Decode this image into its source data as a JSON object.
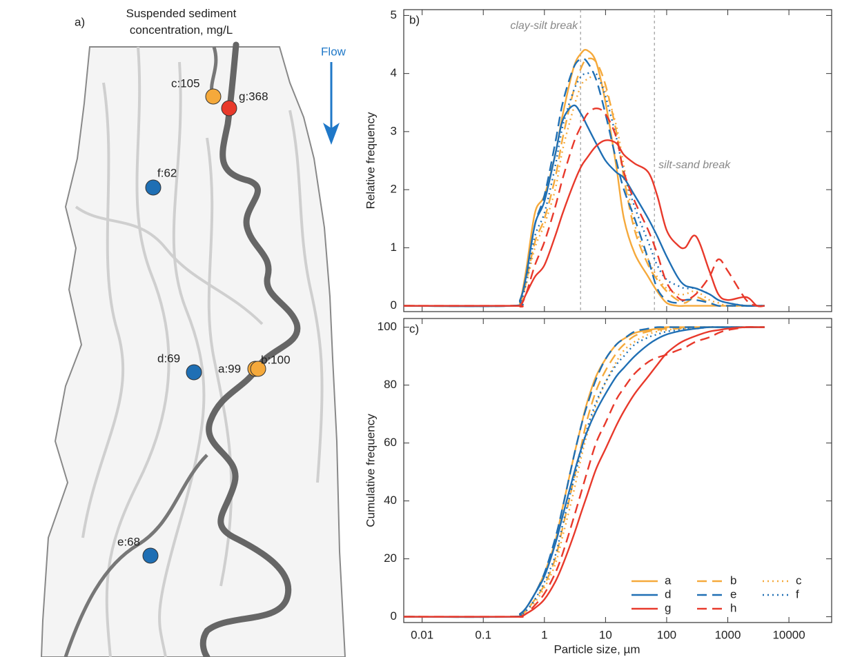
{
  "map": {
    "panel_label": "a)",
    "title": "Suspended sediment concentration, mg/L",
    "flow_label": "Flow",
    "sites": [
      {
        "label": "c:105",
        "color": "#f5a93b"
      },
      {
        "label": "g:368",
        "color": "#e8392b"
      },
      {
        "label": "f:62",
        "color": "#1f6fb4"
      },
      {
        "label": "d:69",
        "color": "#1f6fb4"
      },
      {
        "label": "a:99",
        "color": "#f5a93b"
      },
      {
        "label": "b:100",
        "color": "#f5a93b"
      },
      {
        "label": "e:68",
        "color": "#1f6fb4"
      }
    ]
  },
  "chart_data": [
    {
      "type": "line",
      "panel_label": "b)",
      "y_label": "Relative frequency",
      "log_x": true,
      "x": [
        0.005,
        0.3,
        0.4,
        0.5,
        0.7,
        1,
        1.5,
        2,
        3,
        4,
        5,
        7,
        10,
        15,
        20,
        30,
        50,
        70,
        100,
        150,
        200,
        300,
        500,
        700,
        1000,
        2000,
        3000,
        4000
      ],
      "xlim": [
        0.005,
        50000
      ],
      "xticks": [
        0.01,
        0.1,
        1,
        10,
        100,
        1000,
        10000
      ],
      "ylim": [
        -0.1,
        5.1
      ],
      "yticks": [
        0,
        1,
        2,
        3,
        4,
        5
      ],
      "annotations": [
        {
          "text": "clay-silt break",
          "x": 3.9
        },
        {
          "text": "silt-sand break",
          "x": 63
        }
      ],
      "series": [
        {
          "name": "a",
          "color": "#f5a93b",
          "dash": "solid",
          "values": [
            0,
            0,
            0.1,
            0.6,
            1.6,
            1.9,
            2.6,
            3.3,
            4.1,
            4.35,
            4.4,
            4.2,
            3.5,
            2.4,
            1.5,
            0.9,
            0.5,
            0.25,
            0.05,
            0,
            0,
            0,
            0,
            0,
            0,
            0,
            0,
            0
          ]
        },
        {
          "name": "b",
          "color": "#f5a93b",
          "dash": "dashed",
          "values": [
            0,
            0,
            0.05,
            0.4,
            1.1,
            1.5,
            2.2,
            2.9,
            3.7,
            4.1,
            4.25,
            4.2,
            3.8,
            3.0,
            2.2,
            1.3,
            0.7,
            0.45,
            0.25,
            0.1,
            0.05,
            0.15,
            0.05,
            0,
            0,
            0,
            0,
            0
          ]
        },
        {
          "name": "c",
          "color": "#f5a93b",
          "dash": "dotted",
          "values": [
            0,
            0,
            0.05,
            0.35,
            1.0,
            1.4,
            2.0,
            2.7,
            3.4,
            3.8,
            3.9,
            3.95,
            3.7,
            3.1,
            2.4,
            1.4,
            0.8,
            0.5,
            0.3,
            0.2,
            0.2,
            0.25,
            0.1,
            0.05,
            0,
            0,
            0,
            0
          ]
        },
        {
          "name": "d",
          "color": "#1f6fb4",
          "dash": "solid",
          "values": [
            0,
            0,
            0.1,
            0.5,
            1.4,
            1.8,
            2.6,
            3.2,
            3.45,
            3.3,
            3.1,
            2.8,
            2.5,
            2.3,
            2.2,
            1.9,
            1.5,
            1.2,
            0.85,
            0.5,
            0.35,
            0.3,
            0.2,
            0.1,
            0.05,
            0,
            0,
            0
          ]
        },
        {
          "name": "e",
          "color": "#1f6fb4",
          "dash": "dashed",
          "values": [
            0,
            0,
            0.1,
            0.5,
            1.4,
            1.9,
            2.8,
            3.5,
            4.1,
            4.25,
            4.2,
            3.9,
            3.3,
            2.5,
            2.0,
            1.5,
            0.8,
            0.3,
            0.1,
            0.05,
            0.1,
            0.1,
            0.05,
            0,
            0,
            0,
            0,
            0
          ]
        },
        {
          "name": "f",
          "color": "#1f6fb4",
          "dash": "dotted",
          "values": [
            0,
            0,
            0.05,
            0.4,
            1.2,
            1.6,
            2.4,
            3.1,
            3.7,
            3.95,
            4.0,
            4.0,
            3.6,
            2.9,
            2.3,
            1.7,
            1.1,
            0.7,
            0.45,
            0.35,
            0.3,
            0.3,
            0.2,
            0.1,
            0.05,
            0,
            0,
            0
          ]
        },
        {
          "name": "g",
          "color": "#e8392b",
          "dash": "solid",
          "values": [
            0,
            0,
            0,
            0.2,
            0.5,
            0.7,
            1.2,
            1.6,
            2.1,
            2.4,
            2.55,
            2.75,
            2.85,
            2.8,
            2.6,
            2.45,
            2.3,
            1.9,
            1.3,
            1.05,
            1.0,
            1.2,
            0.6,
            0.2,
            0.1,
            0.15,
            0,
            0
          ]
        },
        {
          "name": "h",
          "color": "#e8392b",
          "dash": "dashed",
          "values": [
            0,
            0,
            0,
            0.2,
            0.7,
            1.1,
            1.7,
            2.2,
            2.8,
            3.1,
            3.3,
            3.4,
            3.3,
            2.9,
            2.3,
            1.8,
            1.3,
            0.9,
            0.4,
            0.15,
            0.1,
            0.2,
            0.5,
            0.8,
            0.6,
            0.1,
            0,
            0
          ]
        }
      ]
    },
    {
      "type": "line",
      "panel_label": "c)",
      "y_label": "Cumulative frequency",
      "x_label": "Particle size, µm",
      "log_x": true,
      "legend": "lower right",
      "x": [
        0.005,
        0.3,
        0.4,
        0.5,
        0.7,
        1,
        1.5,
        2,
        3,
        4,
        5,
        7,
        10,
        15,
        20,
        30,
        50,
        70,
        100,
        150,
        200,
        300,
        500,
        700,
        1000,
        2000,
        3000,
        4000
      ],
      "xlim": [
        0.005,
        50000
      ],
      "xticks": [
        0.01,
        0.1,
        1,
        10,
        100,
        1000,
        10000
      ],
      "ylim": [
        -2,
        103
      ],
      "yticks": [
        0,
        20,
        40,
        60,
        80,
        100
      ],
      "series": [
        {
          "name": "a",
          "color": "#f5a93b",
          "dash": "solid",
          "values": [
            0,
            0,
            1,
            3,
            8,
            15,
            26,
            38,
            55,
            66,
            74,
            83,
            89,
            94,
            96,
            98,
            99,
            99.5,
            100,
            100,
            100,
            100,
            100,
            100,
            100,
            100,
            100,
            100
          ]
        },
        {
          "name": "b",
          "color": "#f5a93b",
          "dash": "dashed",
          "values": [
            0,
            0,
            0.5,
            2,
            6,
            11,
            20,
            31,
            47,
            59,
            68,
            78,
            85,
            91,
            94,
            97,
            98.5,
            99,
            99.5,
            99.5,
            100,
            100,
            100,
            100,
            100,
            100,
            100,
            100
          ]
        },
        {
          "name": "c",
          "color": "#f5a93b",
          "dash": "dotted",
          "values": [
            0,
            0,
            0.5,
            2,
            5,
            10,
            18,
            28,
            43,
            55,
            63,
            73,
            81,
            88,
            92,
            95,
            97.5,
            98.5,
            99,
            99.5,
            99.5,
            100,
            100,
            100,
            100,
            100,
            100,
            100
          ]
        },
        {
          "name": "d",
          "color": "#1f6fb4",
          "dash": "solid",
          "values": [
            0,
            0,
            1,
            3,
            8,
            14,
            25,
            35,
            49,
            58,
            64,
            71,
            77,
            83,
            86,
            90,
            94,
            96,
            97.5,
            98.5,
            99,
            99.5,
            100,
            100,
            100,
            100,
            100,
            100
          ]
        },
        {
          "name": "e",
          "color": "#1f6fb4",
          "dash": "dashed",
          "values": [
            0,
            0,
            1,
            3,
            8,
            15,
            27,
            38,
            55,
            66,
            73,
            82,
            89,
            94,
            96,
            98.5,
            99.5,
            100,
            100,
            100,
            100,
            100,
            100,
            100,
            100,
            100,
            100,
            100
          ]
        },
        {
          "name": "f",
          "color": "#1f6fb4",
          "dash": "dotted",
          "values": [
            0,
            0,
            0.5,
            2,
            6,
            12,
            21,
            32,
            47,
            57,
            65,
            74,
            81,
            87,
            90,
            94,
            96.5,
            97.5,
            98.5,
            99,
            99.5,
            99.5,
            100,
            100,
            100,
            100,
            100,
            100
          ]
        },
        {
          "name": "g",
          "color": "#e8392b",
          "dash": "solid",
          "values": [
            0,
            0,
            0,
            1,
            3,
            6,
            12,
            18,
            28,
            36,
            42,
            51,
            58,
            66,
            71,
            77,
            83,
            87,
            91,
            94,
            95.5,
            97,
            98.5,
            99,
            99.5,
            100,
            100,
            100
          ]
        },
        {
          "name": "h",
          "color": "#e8392b",
          "dash": "dashed",
          "values": [
            0,
            0,
            0,
            1,
            4,
            8,
            15,
            22,
            34,
            43,
            50,
            60,
            67,
            75,
            79,
            84,
            88,
            89.5,
            90.5,
            92,
            93,
            95,
            96.5,
            98,
            99,
            100,
            100,
            100
          ]
        }
      ]
    }
  ]
}
